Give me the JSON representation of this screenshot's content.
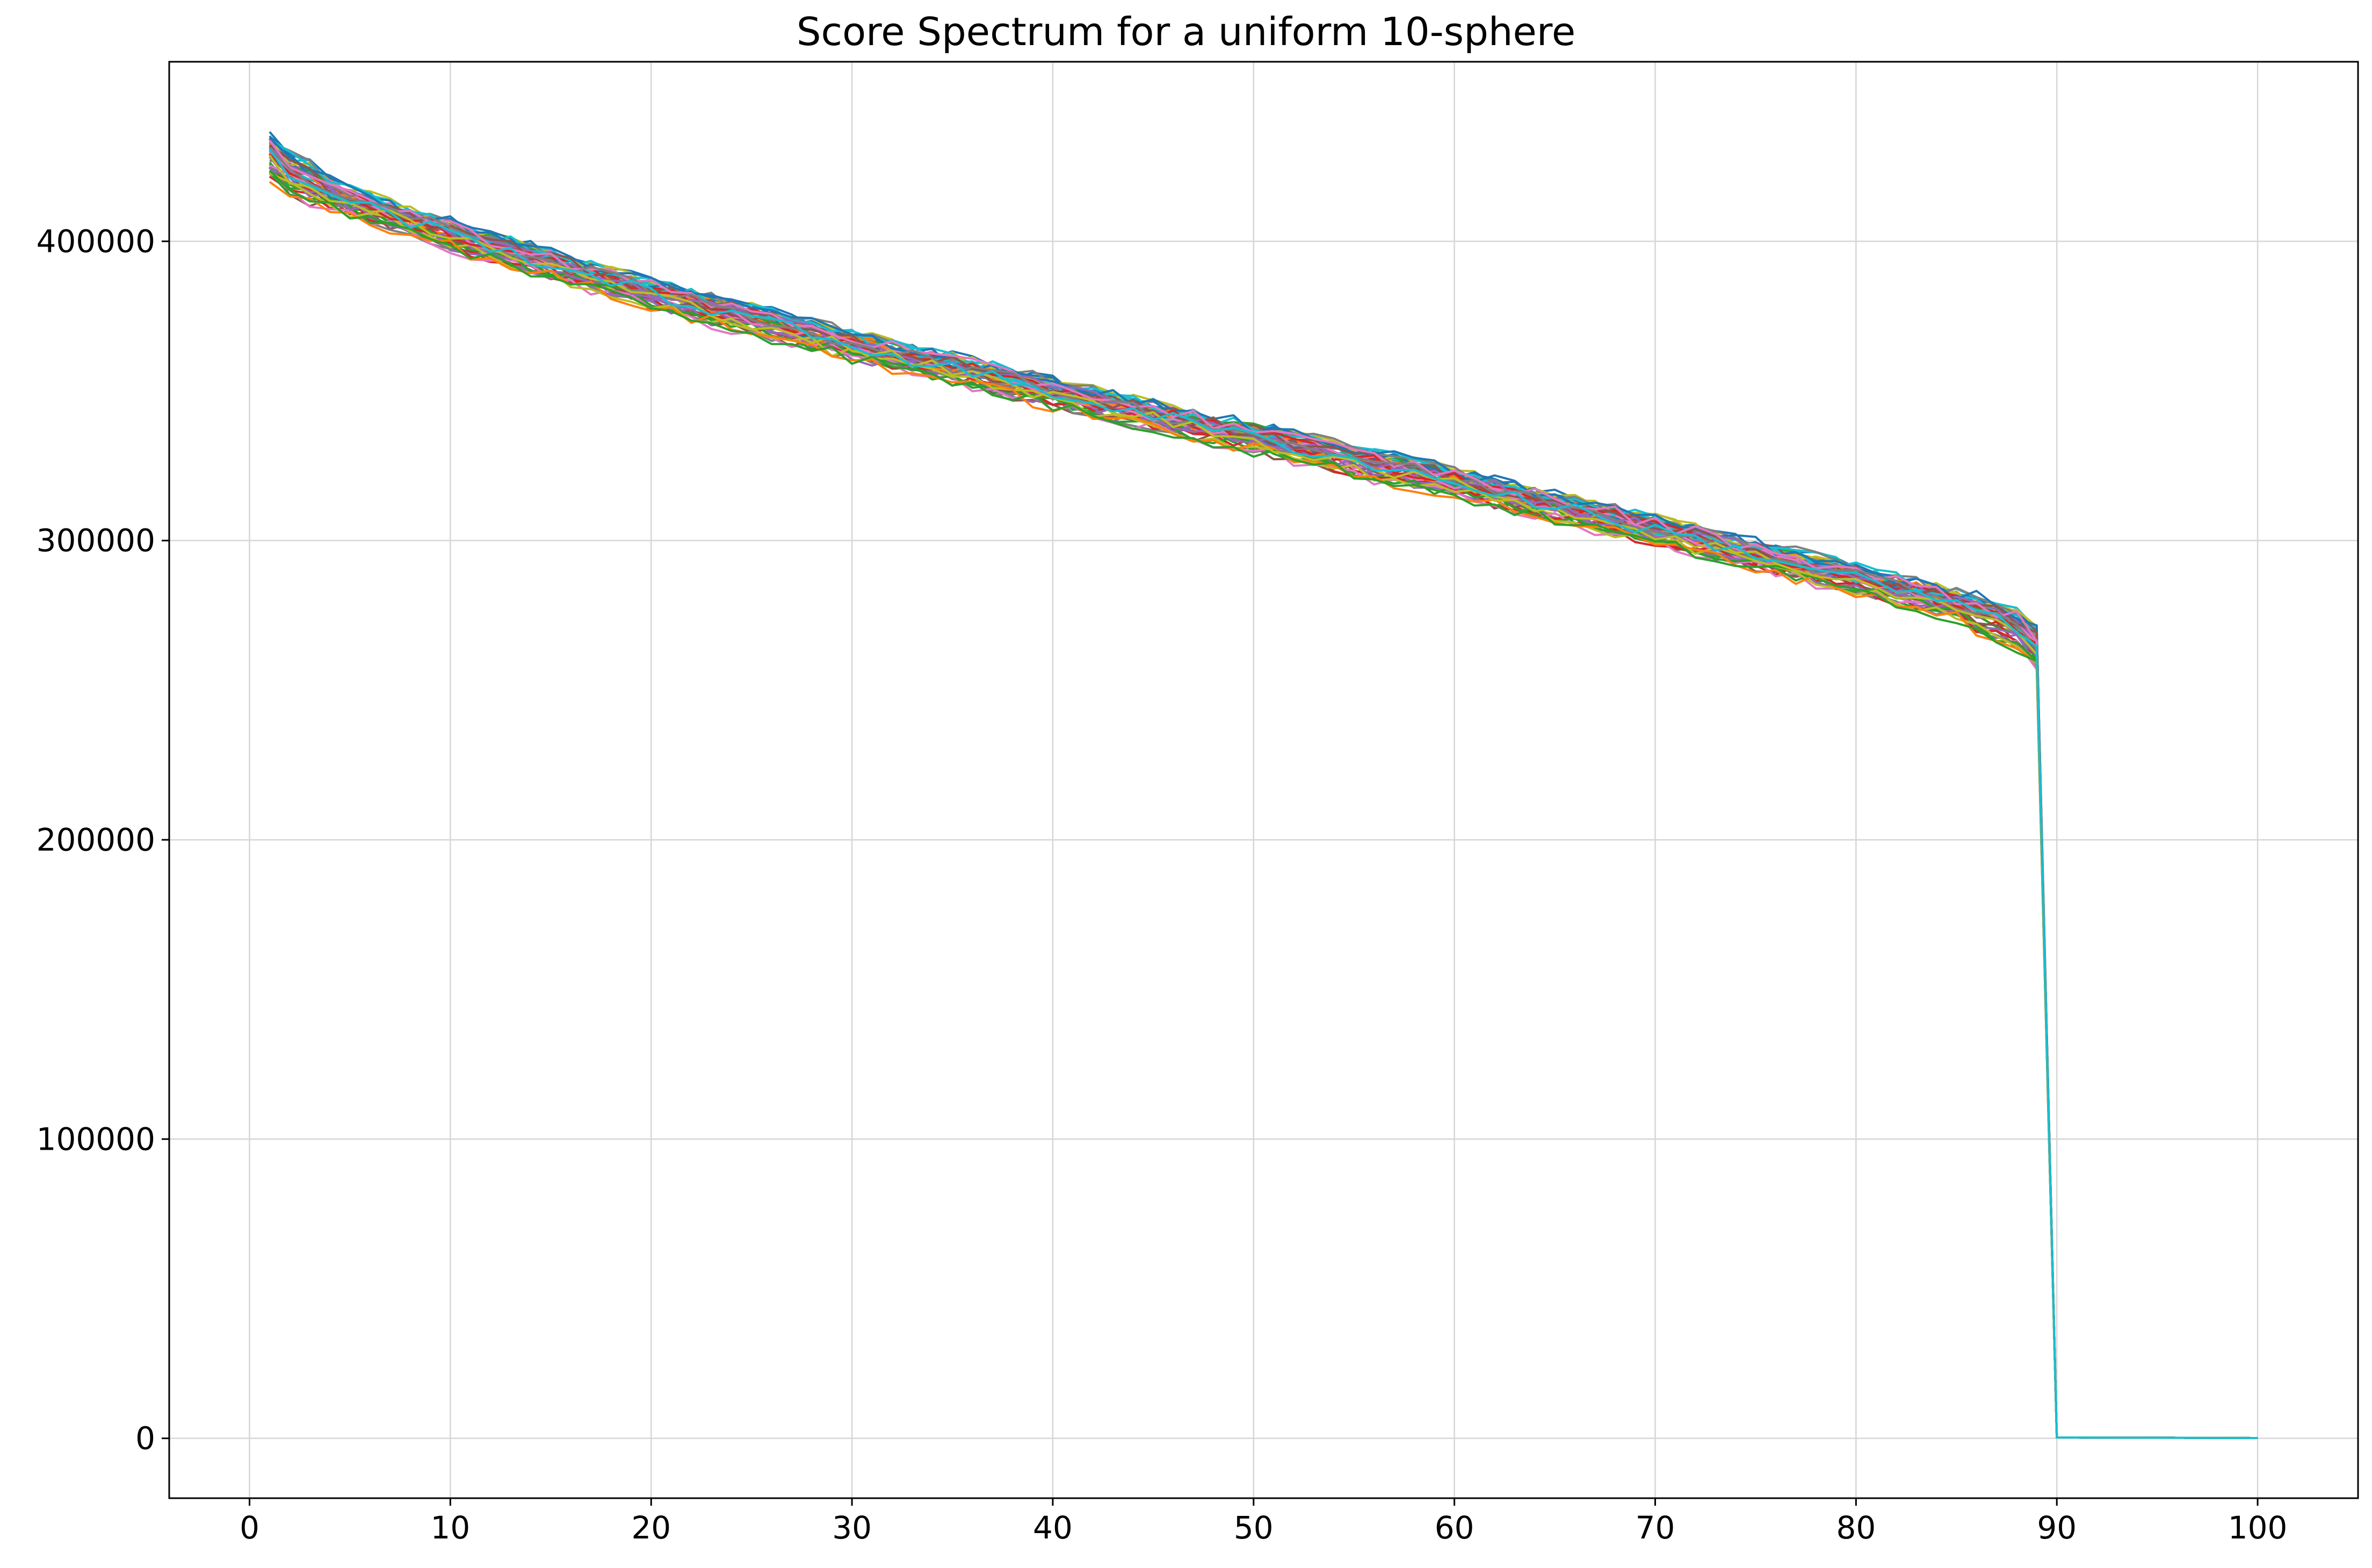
{
  "chart_data": {
    "type": "line",
    "title": "Score Spectrum for a uniform 10-sphere",
    "xlabel": "",
    "ylabel": "",
    "xlim": [
      -4,
      105
    ],
    "ylim": [
      -20000,
      460000
    ],
    "xticks": [
      0,
      10,
      20,
      30,
      40,
      50,
      60,
      70,
      80,
      90,
      100
    ],
    "yticks": [
      0,
      100000,
      200000,
      300000,
      400000
    ],
    "xtick_labels": [
      "0",
      "10",
      "20",
      "30",
      "40",
      "50",
      "60",
      "70",
      "80",
      "90",
      "100"
    ],
    "ytick_labels": [
      "0",
      "100000",
      "200000",
      "300000",
      "400000"
    ],
    "grid": true,
    "legend": "none",
    "series_count": 50,
    "x": [
      1,
      2,
      3,
      4,
      5,
      6,
      7,
      8,
      9,
      10,
      11,
      12,
      13,
      14,
      15,
      16,
      17,
      18,
      19,
      20,
      21,
      22,
      23,
      24,
      25,
      26,
      27,
      28,
      29,
      30,
      31,
      32,
      33,
      34,
      35,
      36,
      37,
      38,
      39,
      40,
      41,
      42,
      43,
      44,
      45,
      46,
      47,
      48,
      49,
      50,
      51,
      52,
      53,
      54,
      55,
      56,
      57,
      58,
      59,
      60,
      61,
      62,
      63,
      64,
      65,
      66,
      67,
      68,
      69,
      70,
      71,
      72,
      73,
      74,
      75,
      76,
      77,
      78,
      79,
      80,
      81,
      82,
      83,
      84,
      85,
      86,
      87,
      88,
      89,
      90,
      91,
      92,
      93,
      94,
      95,
      96,
      97,
      98,
      99,
      100
    ],
    "representative_profile": {
      "x": [
        1,
        2,
        5,
        10,
        20,
        30,
        40,
        50,
        60,
        70,
        80,
        85,
        88,
        89,
        90,
        100
      ],
      "y": [
        428000,
        422000,
        413000,
        402000,
        382000,
        365000,
        349000,
        334000,
        319000,
        303000,
        287000,
        278000,
        270000,
        264000,
        300,
        100
      ]
    },
    "band_halfwidth": 7000,
    "colors": [
      "#1f77b4",
      "#ff7f0e",
      "#2ca02c",
      "#d62728",
      "#9467bd",
      "#8c564b",
      "#e377c2",
      "#7f7f7f",
      "#bcbd22",
      "#17becf"
    ]
  }
}
